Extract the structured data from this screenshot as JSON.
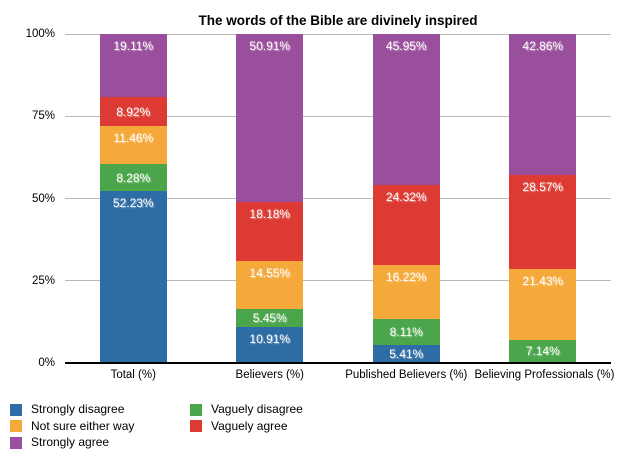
{
  "title": "The words of the Bible are divinely inspired",
  "chart_data": {
    "type": "bar",
    "stacked": true,
    "title": "The words of the Bible are divinely inspired",
    "categories": [
      "Total (%)",
      "Believers (%)",
      "Published Believers (%)",
      "Believing Professionals (%)"
    ],
    "series": [
      {
        "name": "Strongly disagree",
        "color": "#2E6CA5",
        "values": [
          52.23,
          10.91,
          5.41,
          0
        ]
      },
      {
        "name": "Vaguely disagree",
        "color": "#4BA64B",
        "values": [
          8.28,
          5.45,
          8.11,
          7.14
        ]
      },
      {
        "name": "Not sure either way",
        "color": "#F5A93B",
        "values": [
          11.46,
          14.55,
          16.22,
          21.43
        ]
      },
      {
        "name": "Vaguely agree",
        "color": "#DC3A32",
        "values": [
          8.92,
          18.18,
          24.32,
          28.57
        ]
      },
      {
        "name": "Strongly agree",
        "color": "#9A4F9D",
        "values": [
          19.11,
          50.91,
          45.95,
          42.86
        ]
      }
    ],
    "segment_labels": [
      [
        "52.23%",
        "10.91%",
        "5.41%",
        ""
      ],
      [
        "8.28%",
        "5.45%",
        "8.11%",
        "7.14%"
      ],
      [
        "11.46%",
        "14.55%",
        "16.22%",
        "21.43%"
      ],
      [
        "8.92%",
        "18.18%",
        "24.32%",
        "28.57%"
      ],
      [
        "19.11%",
        "50.91%",
        "45.95%",
        "42.86%"
      ]
    ],
    "ylim": [
      0,
      100
    ],
    "yticks": [
      {
        "value": 0,
        "label": "0%"
      },
      {
        "value": 25,
        "label": "25%"
      },
      {
        "value": 50,
        "label": "50%"
      },
      {
        "value": 75,
        "label": "75%"
      },
      {
        "value": 100,
        "label": "100%"
      }
    ],
    "grid": true,
    "legend_position": "bottom-left",
    "legend_columns": [
      [
        "Strongly disagree",
        "Not sure either way",
        "Strongly agree"
      ],
      [
        "Vaguely disagree",
        "Vaguely agree"
      ]
    ],
    "axis_color": "#000000",
    "gridline_color": "#b8b8b8",
    "label_text_color": "#ffffff"
  }
}
